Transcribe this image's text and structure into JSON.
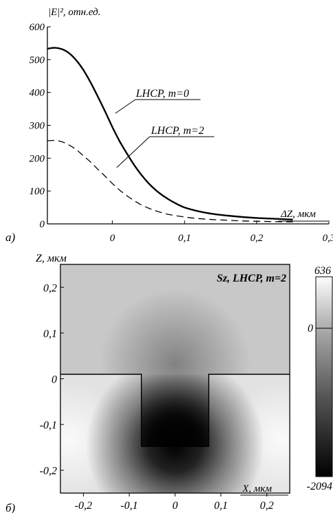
{
  "chart_data": [
    {
      "type": "line",
      "panel_label": "а)",
      "ylabel": "|E|², отн.ед.",
      "xlabel": "ΔZ, мкм",
      "xlim": [
        -0.09,
        0.3
      ],
      "ylim": [
        0,
        600
      ],
      "xticks": [
        "0",
        "0,1",
        "0,2",
        "0,3"
      ],
      "yticks": [
        "0",
        "100",
        "200",
        "300",
        "400",
        "500",
        "600"
      ],
      "grid": false,
      "series": [
        {
          "name": "LHCP, m=0",
          "style": "solid",
          "x": [
            -0.09,
            -0.08,
            -0.07,
            -0.06,
            -0.05,
            -0.04,
            -0.03,
            -0.02,
            -0.01,
            0.0,
            0.01,
            0.02,
            0.03,
            0.04,
            0.05,
            0.06,
            0.07,
            0.08,
            0.09,
            0.1,
            0.12,
            0.14,
            0.16,
            0.18,
            0.2,
            0.22,
            0.25
          ],
          "y": [
            533,
            536,
            532,
            520,
            498,
            468,
            430,
            387,
            342,
            295,
            252,
            215,
            180,
            150,
            124,
            103,
            86,
            72,
            60,
            50,
            38,
            30,
            25,
            21,
            18,
            16,
            13
          ]
        },
        {
          "name": "LHCP, m=2",
          "style": "dashed",
          "x": [
            -0.09,
            -0.08,
            -0.07,
            -0.06,
            -0.05,
            -0.04,
            -0.03,
            -0.02,
            -0.01,
            0.0,
            0.01,
            0.02,
            0.03,
            0.04,
            0.05,
            0.06,
            0.07,
            0.08,
            0.1,
            0.12,
            0.14,
            0.16,
            0.18,
            0.2,
            0.22,
            0.25
          ],
          "y": [
            253,
            254,
            250,
            240,
            226,
            207,
            188,
            166,
            145,
            123,
            103,
            86,
            71,
            58,
            48,
            40,
            33,
            28,
            21,
            16,
            13,
            11,
            9,
            8,
            7,
            6
          ]
        }
      ]
    },
    {
      "type": "heatmap",
      "panel_label": "б)",
      "title": "Sz, LHCP, m=2",
      "xlabel": "X, мкм",
      "ylabel": "Z, мкм",
      "xlim": [
        -0.25,
        0.25
      ],
      "ylim": [
        -0.25,
        0.25
      ],
      "xticks": [
        "-0,2",
        "-0,1",
        "0",
        "0,1",
        "0,2"
      ],
      "yticks": [
        "0,2",
        "0,1",
        "0",
        "-0,1",
        "-0,2"
      ],
      "colorbar": {
        "max": "636",
        "mid": "0",
        "min": "-2094"
      },
      "pit": {
        "x": [
          -0.075,
          0.075
        ],
        "z": [
          -0.15,
          0.0
        ]
      }
    }
  ]
}
